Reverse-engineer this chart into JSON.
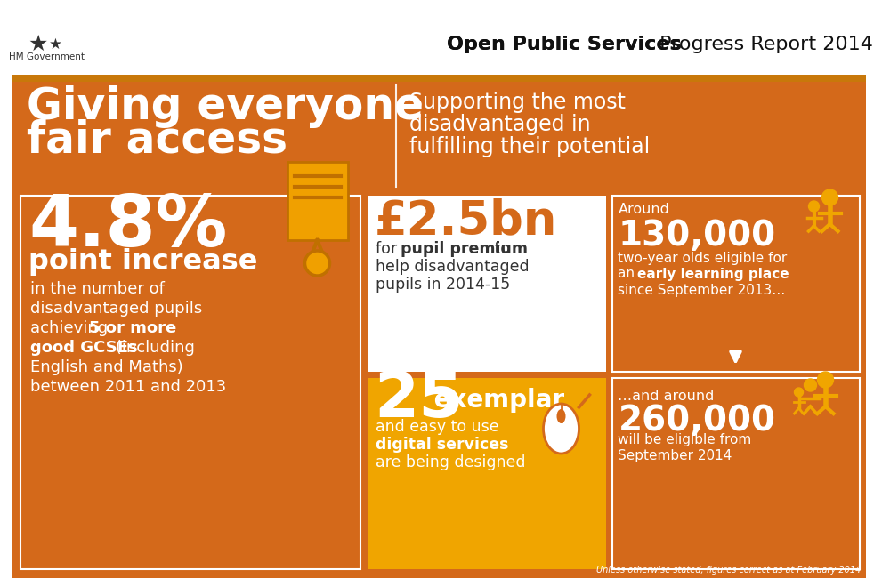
{
  "bg_color": "#ffffff",
  "orange": "#D4691A",
  "orange_dark": "#B85A10",
  "yellow": "#F0A500",
  "white": "#ffffff",
  "header_bar_color": "#C8640A",
  "title_bold": "Open Public Services",
  "title_normal": " Progress Report 2014",
  "hm_gov_text": "HM Government",
  "banner_text1": "Giving everyone",
  "banner_text2": "fair access",
  "banner_sub1": "Supporting the most",
  "banner_sub2": "disadvantaged in",
  "banner_sub3": "fulfilling their potential",
  "stat1_big": "4.8%",
  "stat1_label": "point increase",
  "stat1_line1": "in the number of",
  "stat1_line2": "disadvantaged pupils",
  "stat1_line3a": "achieving ",
  "stat1_line3b": "5 or more",
  "stat1_line4a": "good GCSEs",
  "stat1_line4b": " (including",
  "stat1_line5": "English and Maths)",
  "stat1_line6": "between 2011 and 2013",
  "stat2_big": "£2.5bn",
  "stat2_line1a": "for ",
  "stat2_line1b": "pupil premium",
  "stat2_line1c": " to",
  "stat2_line2": "help disadvantaged",
  "stat2_line3": "pupils in 2014-15",
  "stat3_around": "Around",
  "stat3_big": "130,000",
  "stat3_line1": "two-year olds eligible for",
  "stat3_line2a": "an ",
  "stat3_line2b": "early learning place",
  "stat3_line3": "since September 2013…",
  "stat4_big": "25",
  "stat4_label": " exemplar",
  "stat4_line1": "and easy to use",
  "stat4_line2": "digital services",
  "stat4_line3": "are being designed",
  "stat5_around": "…and around",
  "stat5_big": "260,000",
  "stat5_line1": "will be eligible from",
  "stat5_line2": "September 2014",
  "footer": "Unless otherwise stated, figures correct as at February 2014"
}
